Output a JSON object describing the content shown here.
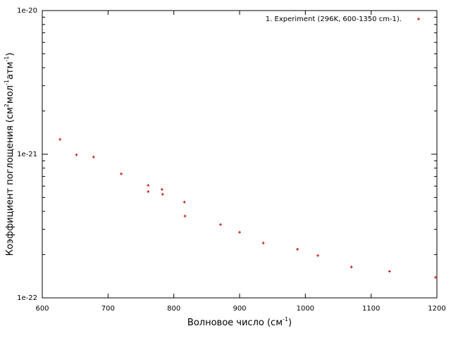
{
  "chart_data": {
    "type": "scatter",
    "xlabel": [
      "Волновое число (см",
      "-1",
      ")"
    ],
    "ylabel": [
      "Коэффициент поглощения (см",
      "2",
      "мол",
      "-1",
      "атм",
      "-1",
      ")"
    ],
    "series": [
      {
        "name": "1. Experiment (296K, 600-1350 cm-1).",
        "color": "#c00000",
        "x": [
          627,
          652,
          678,
          720,
          761,
          761,
          782,
          783,
          816,
          817,
          871,
          900,
          936,
          988,
          1019,
          1070,
          1128,
          1198
        ],
        "values": [
          1.27e-21,
          9.9e-22,
          9.56e-22,
          7.3e-22,
          6.08e-22,
          5.5e-22,
          5.69e-22,
          5.26e-22,
          4.64e-22,
          3.71e-22,
          3.24e-22,
          2.86e-22,
          2.41e-22,
          2.18e-22,
          1.97e-22,
          1.64e-22,
          1.53e-22,
          1.39e-22
        ]
      }
    ],
    "xlim": [
      600,
      1200
    ],
    "xticks": [
      600,
      700,
      800,
      900,
      1000,
      1100,
      1200
    ],
    "ylim": [
      1e-22,
      1e-20
    ],
    "yticks": [
      {
        "value": 1e-22,
        "label": "1e-22"
      },
      {
        "value": 1e-21,
        "label": "1e-21"
      },
      {
        "value": 1e-20,
        "label": "1e-20"
      }
    ],
    "log_y": true,
    "grid": false,
    "legend": "top-right"
  }
}
